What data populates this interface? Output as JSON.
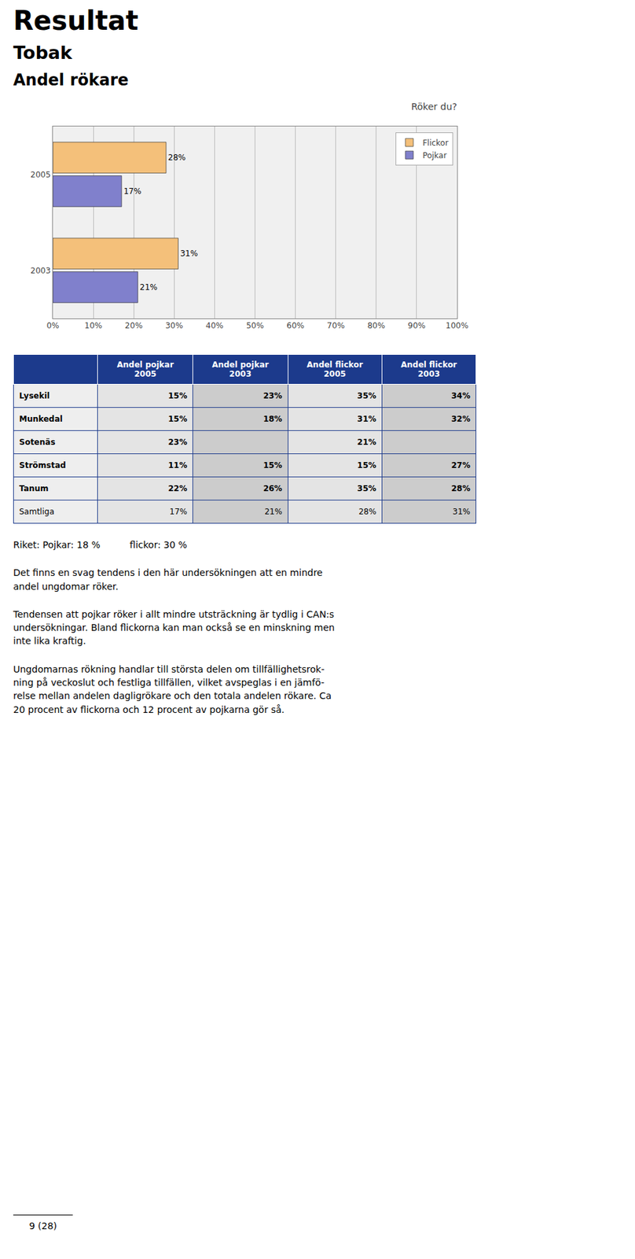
{
  "headings": [
    "Resultat",
    "Tobak",
    "Andel rökare"
  ],
  "chart_data": [
    {
      "type": "bar",
      "orientation": "horizontal",
      "title": "Röker du?",
      "categories": [
        "2005",
        "2003"
      ],
      "series": [
        {
          "name": "Flickor",
          "color": "#F4C07A",
          "values": [
            28,
            31
          ],
          "value_labels": [
            "28%",
            "31%"
          ]
        },
        {
          "name": "Pojkar",
          "color": "#8080CC",
          "values": [
            17,
            21
          ],
          "value_labels": [
            "17%",
            "21%"
          ]
        }
      ],
      "xlim": [
        0,
        100
      ],
      "xticks": [
        {
          "value": 0,
          "label": "0%"
        },
        {
          "value": 10,
          "label": "10%"
        },
        {
          "value": 20,
          "label": "20%"
        },
        {
          "value": 30,
          "label": "30%"
        },
        {
          "value": 40,
          "label": "40%"
        },
        {
          "value": 50,
          "label": "50%"
        },
        {
          "value": 60,
          "label": "60%"
        },
        {
          "value": 70,
          "label": "70%"
        },
        {
          "value": 80,
          "label": "80%"
        },
        {
          "value": 90,
          "label": "90%"
        },
        {
          "value": 100,
          "label": "100%"
        }
      ],
      "grid": true,
      "legend": "upper right",
      "data_labels": true
    },
    {
      "type": "table",
      "header": [
        null,
        "Andel pojkar\n2005",
        "Andel pojkar\n2003",
        "Andel flickor\n2005",
        "Andel flickor\n2003"
      ],
      "rows": [
        [
          "Lysekil",
          "15%",
          "23%",
          "35%",
          "34%"
        ],
        [
          "Munkedal",
          "15%",
          "18%",
          "31%",
          "32%"
        ],
        [
          "Sotenäs",
          "23%",
          null,
          "21%",
          null
        ],
        [
          "Strömstad",
          "11%",
          "15%",
          "15%",
          "27%"
        ],
        [
          "Tanum",
          "22%",
          "26%",
          "35%",
          "28%"
        ],
        [
          "Samtliga",
          "17%",
          "21%",
          "28%",
          "31%"
        ]
      ]
    }
  ],
  "paragraphs": [
    "Riket: Pojkar: 18 %          flickor: 30 %",
    "Det finns en svag tendens i den här undersökningen att en mindre\nandel ungdomar röker.",
    "Tendensen att pojkar röker i allt mindre utsträckning är tydlig i CAN:s\nundersökningar. Bland flickorna kan man också se en minskning men\ninte lika kraftig.",
    "Ungdomarnas rökning handlar till största delen om tillfällighetsrok-\nning på veckoslut och festliga tillfällen, vilket avspeglas i en jämfö-\nrelse mellan andelen dagligrökare och den totala andelen rökare. Ca\n20 procent av flickorna och 12 procent av pojkarna gör så."
  ],
  "footer": "9 (28)"
}
